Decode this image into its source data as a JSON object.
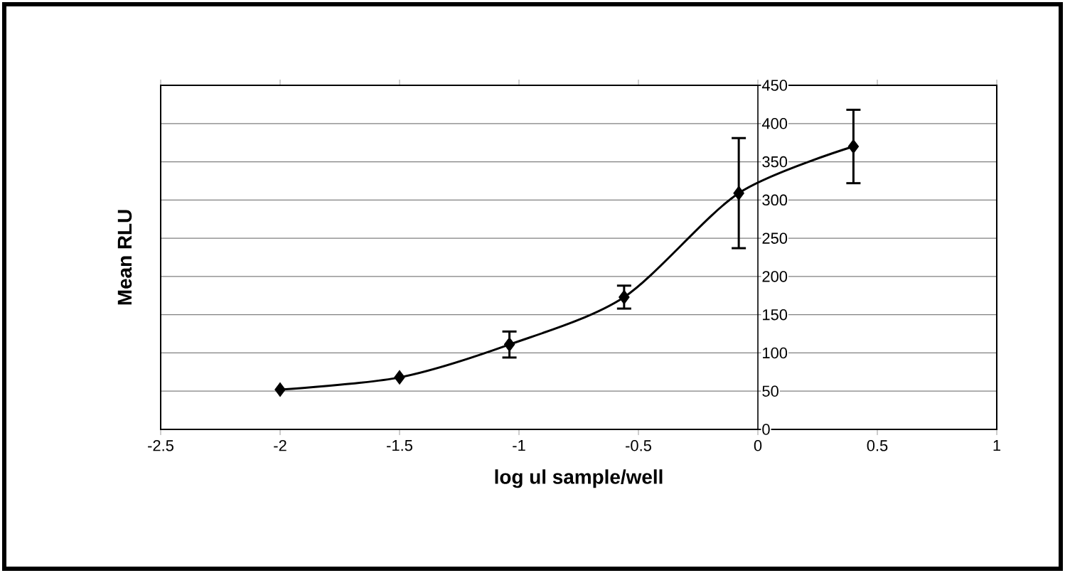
{
  "chart_data": {
    "type": "line",
    "xlabel": "log ul sample/well",
    "ylabel": "Mean RLU",
    "x": [
      -2,
      -1.5,
      -1.04,
      -0.56,
      -0.08,
      0.4
    ],
    "values": [
      52,
      68,
      111,
      173,
      309,
      370
    ],
    "errors": [
      null,
      null,
      17,
      15,
      72,
      48
    ],
    "color": "#000000",
    "marker": "diamond",
    "line_style": "solid",
    "grid": "y",
    "xlim": [
      -2.5,
      1
    ],
    "xticks": [
      -2.5,
      -2,
      -1.5,
      -1,
      -0.5,
      0,
      0.5,
      1
    ],
    "ylim": [
      0,
      450
    ],
    "yticks": [
      0,
      50,
      100,
      150,
      200,
      250,
      300,
      350,
      400,
      450
    ]
  }
}
